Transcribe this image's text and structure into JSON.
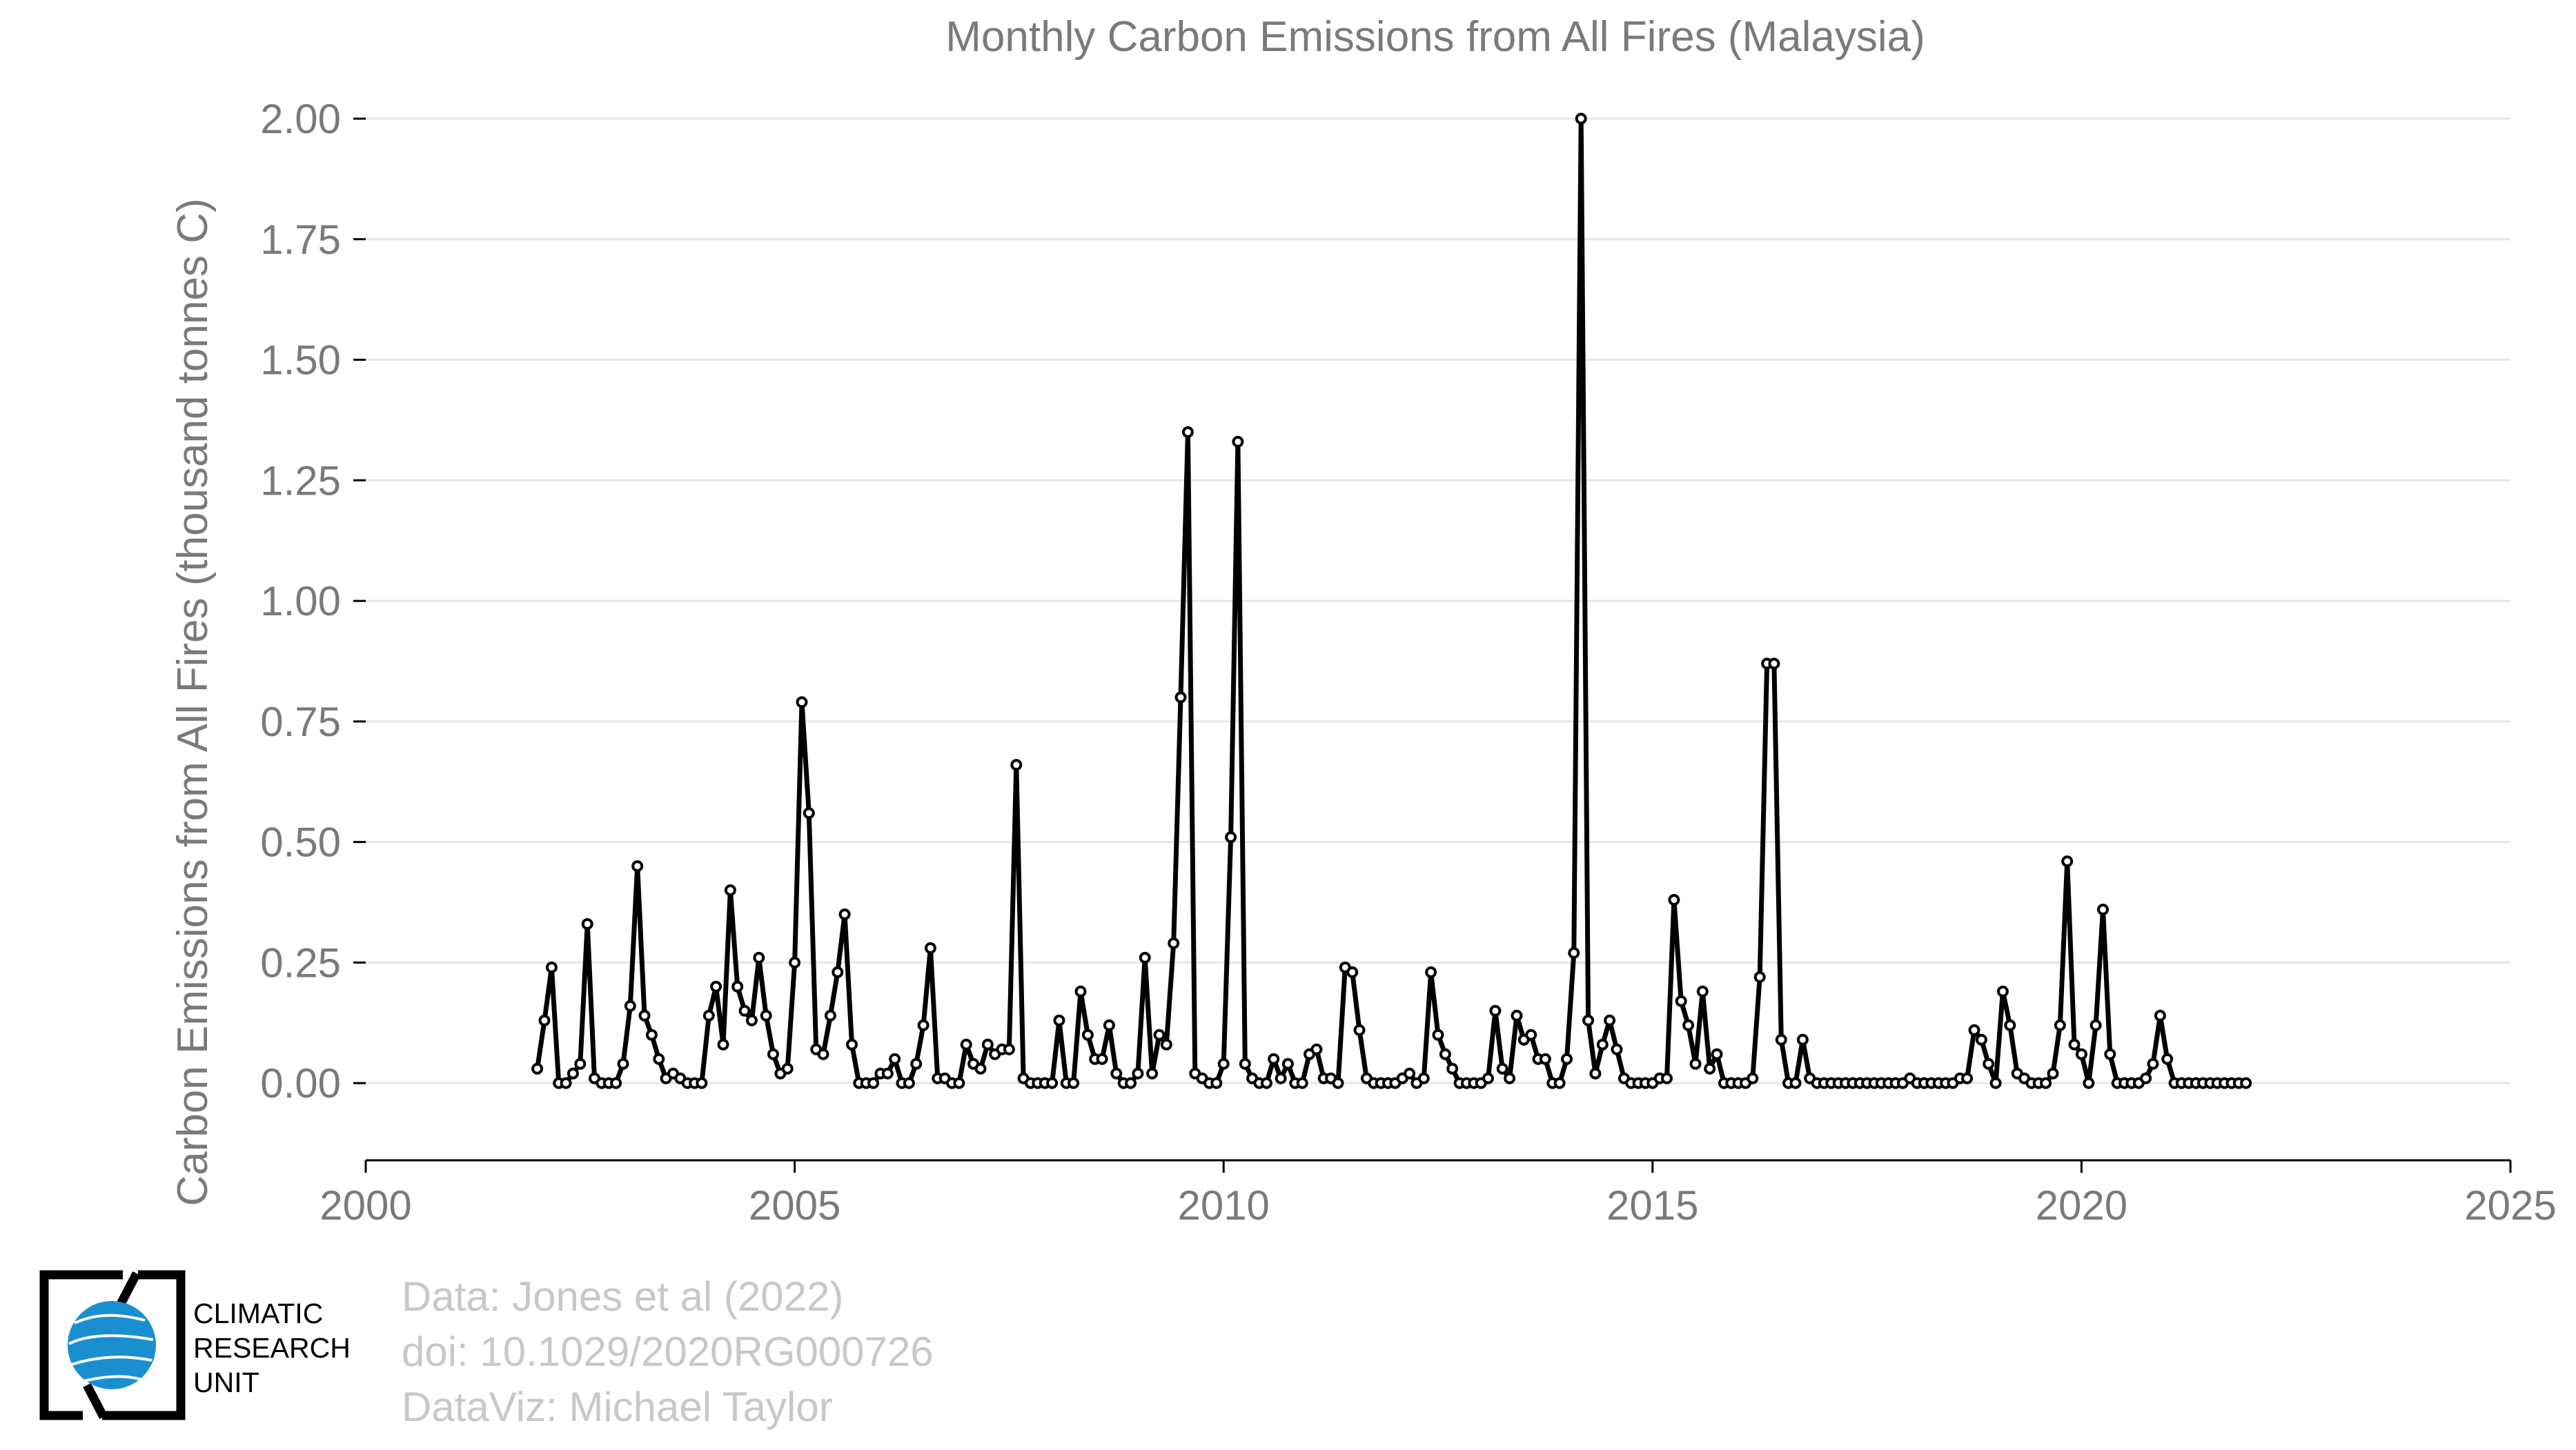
{
  "chart_data": {
    "type": "line",
    "title": "Monthly Carbon Emissions from All Fires (Malaysia)",
    "xlabel": "",
    "ylabel": "Carbon Emissions from All Fires (thousand tonnes C)",
    "xlim": [
      2000,
      2025
    ],
    "ylim": [
      -0.16,
      2.0
    ],
    "x_ticks": [
      2000,
      2005,
      2010,
      2015,
      2020,
      2025
    ],
    "x_tick_labels": [
      "2000",
      "2005",
      "2010",
      "2015",
      "2020",
      "2025"
    ],
    "y_ticks": [
      0,
      0.25,
      0.5,
      0.75,
      1.0,
      1.25,
      1.5,
      1.75,
      2.0
    ],
    "y_tick_labels": [
      "0.00",
      "0.25",
      "0.50",
      "0.75",
      "1.00",
      "1.25",
      "1.50",
      "1.75",
      "2.00"
    ],
    "grid": "horizontal",
    "series": [
      {
        "color": "#000000",
        "x_start": 2002.0,
        "x_step_months": 1,
        "values": [
          0.03,
          0.13,
          0.24,
          0.0,
          0.0,
          0.02,
          0.04,
          0.33,
          0.01,
          0.0,
          0.0,
          0.0,
          0.04,
          0.16,
          0.45,
          0.14,
          0.1,
          0.05,
          0.01,
          0.02,
          0.01,
          0.0,
          0.0,
          0.0,
          0.14,
          0.2,
          0.08,
          0.4,
          0.2,
          0.15,
          0.13,
          0.26,
          0.14,
          0.06,
          0.02,
          0.03,
          0.25,
          0.79,
          0.56,
          0.07,
          0.06,
          0.14,
          0.23,
          0.35,
          0.08,
          0.0,
          0.0,
          0.0,
          0.02,
          0.02,
          0.05,
          0.0,
          0.0,
          0.04,
          0.12,
          0.28,
          0.01,
          0.01,
          0.0,
          0.0,
          0.08,
          0.04,
          0.03,
          0.08,
          0.06,
          0.07,
          0.07,
          0.66,
          0.01,
          0.0,
          0.0,
          0.0,
          0.0,
          0.13,
          0.0,
          0.0,
          0.19,
          0.1,
          0.05,
          0.05,
          0.12,
          0.02,
          0.0,
          0.0,
          0.02,
          0.26,
          0.02,
          0.1,
          0.08,
          0.29,
          0.8,
          1.35,
          0.02,
          0.01,
          0.0,
          0.0,
          0.04,
          0.51,
          1.33,
          0.04,
          0.01,
          0.0,
          0.0,
          0.05,
          0.01,
          0.04,
          0.0,
          0.0,
          0.06,
          0.07,
          0.01,
          0.01,
          0.0,
          0.24,
          0.23,
          0.11,
          0.01,
          0.0,
          0.0,
          0.0,
          0.0,
          0.01,
          0.02,
          0.0,
          0.01,
          0.23,
          0.1,
          0.06,
          0.03,
          0.0,
          0.0,
          0.0,
          0.0,
          0.01,
          0.15,
          0.03,
          0.01,
          0.14,
          0.09,
          0.1,
          0.05,
          0.05,
          0.0,
          0.0,
          0.05,
          0.27,
          2.0,
          0.13,
          0.02,
          0.08,
          0.13,
          0.07,
          0.01,
          0.0,
          0.0,
          0.0,
          0.0,
          0.01,
          0.01,
          0.38,
          0.17,
          0.12,
          0.04,
          0.19,
          0.03,
          0.06,
          0.0,
          0.0,
          0.0,
          0.0,
          0.01,
          0.22,
          0.87,
          0.87,
          0.09,
          0.0,
          0.0,
          0.09,
          0.01,
          0.0,
          0.0,
          0.0,
          0.0,
          0.0,
          0.0,
          0.0,
          0.0,
          0.0,
          0.0,
          0.0,
          0.0,
          0.0,
          0.01,
          0.0,
          0.0,
          0.0,
          0.0,
          0.0,
          0.0,
          0.01,
          0.01,
          0.11,
          0.09,
          0.04,
          0.0,
          0.19,
          0.12,
          0.02,
          0.01,
          0.0,
          0.0,
          0.0,
          0.02,
          0.12,
          0.46,
          0.08,
          0.06,
          0.0,
          0.12,
          0.36,
          0.06,
          0.0,
          0.0,
          0.0,
          0.0,
          0.01,
          0.04,
          0.14,
          0.05,
          0.0,
          0.0,
          0.0,
          0.0,
          0.0,
          0.0,
          0.0,
          0.0,
          0.0,
          0.0,
          0.0
        ]
      }
    ]
  },
  "credits": {
    "line1": "Data: Jones et al (2022)",
    "line2": "doi: 10.1029/2020RG000726",
    "line3": "DataViz: Michael Taylor"
  },
  "logo": {
    "line1": "CLIMATIC",
    "line2": "RESEARCH",
    "line3": "UNIT",
    "color": "#1a8fd0"
  }
}
